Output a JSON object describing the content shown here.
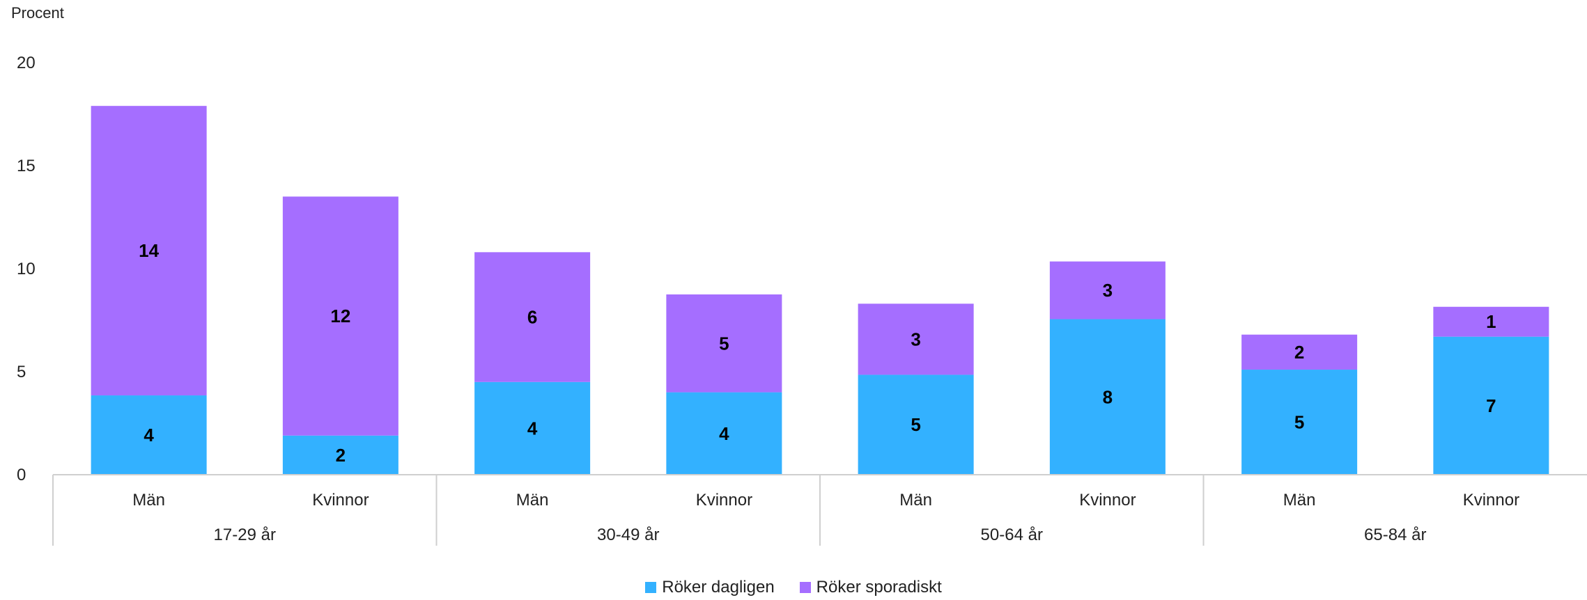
{
  "chart_data": {
    "type": "bar",
    "stacked": true,
    "ylabel": "Procent",
    "ylim": [
      0,
      20
    ],
    "yticks": [
      0,
      5,
      10,
      15,
      20
    ],
    "groups": [
      "17-29 år",
      "30-49 år",
      "50-64 år",
      "65-84 år"
    ],
    "categories": [
      "Män",
      "Kvinnor",
      "Män",
      "Kvinnor",
      "Män",
      "Kvinnor",
      "Män",
      "Kvinnor"
    ],
    "series": [
      {
        "name": "Röker dagligen",
        "color": "#33b1ff",
        "values": [
          3.85,
          1.9,
          4.5,
          4.0,
          4.85,
          7.55,
          5.1,
          6.7
        ],
        "labels": [
          "4",
          "2",
          "4",
          "4",
          "5",
          "8",
          "5",
          "7"
        ]
      },
      {
        "name": "Röker sporadiskt",
        "color": "#a56eff",
        "values": [
          14.05,
          11.6,
          6.3,
          4.75,
          3.45,
          2.8,
          1.7,
          1.45
        ],
        "labels": [
          "14",
          "12",
          "6",
          "5",
          "3",
          "3",
          "2",
          "1"
        ]
      }
    ],
    "grid": false,
    "legend": "bottom-center"
  }
}
